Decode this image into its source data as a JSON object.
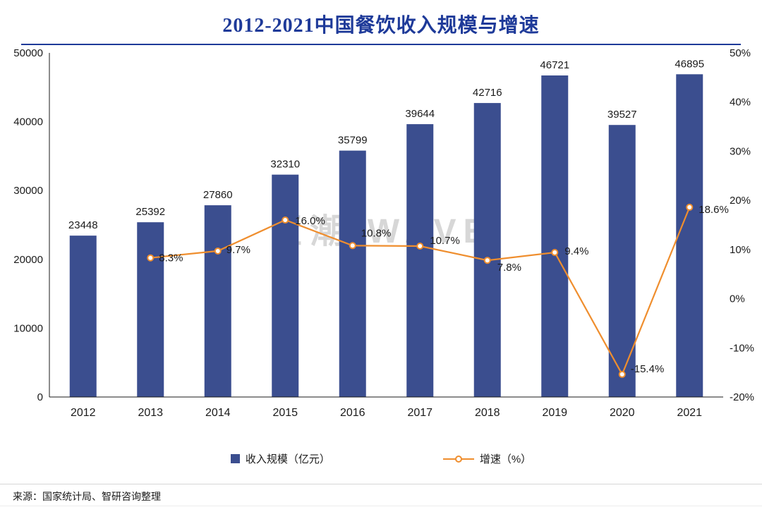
{
  "title": "2012-2021中国餐饮收入规模与增速",
  "watermark": "巨潮 WAVE",
  "source": "来源：国家统计局、智研咨询整理",
  "legend": {
    "bar_label": "收入规模（亿元）",
    "line_label": "增速（%）"
  },
  "colors": {
    "bar": "#3B4E8F",
    "line": "#EF8E2E",
    "title": "#1E3A99",
    "watermark": "#D7D7D7",
    "axis": "#1A1A1A"
  },
  "chart_data": {
    "type": "bar+line",
    "title": "2012-2021中国餐饮收入规模与增速",
    "categories": [
      "2012",
      "2013",
      "2014",
      "2015",
      "2016",
      "2017",
      "2018",
      "2019",
      "2020",
      "2021"
    ],
    "series": [
      {
        "name": "收入规模（亿元）",
        "type": "bar",
        "axis": "left",
        "values": [
          23448,
          25392,
          27860,
          32310,
          35799,
          39644,
          42716,
          46721,
          39527,
          46895
        ]
      },
      {
        "name": "增速（%）",
        "type": "line",
        "axis": "right",
        "values": [
          null,
          8.3,
          9.7,
          16.0,
          10.8,
          10.7,
          7.8,
          9.4,
          -15.4,
          18.6
        ]
      }
    ],
    "bar_labels": [
      "23448",
      "25392",
      "27860",
      "32310",
      "35799",
      "39644",
      "42716",
      "46721",
      "39527",
      "46895"
    ],
    "line_labels": [
      null,
      "8.3%",
      "9.7%",
      "16.0%",
      "10.8%",
      "10.7%",
      "7.8%",
      "9.4%",
      "-15.4%",
      "18.6%"
    ],
    "left_axis": {
      "min": 0,
      "max": 50000,
      "step": 10000,
      "ticks": [
        "0",
        "10000",
        "20000",
        "30000",
        "40000",
        "50000"
      ]
    },
    "right_axis": {
      "min": -20,
      "max": 50,
      "step": 10,
      "ticks": [
        "-20%",
        "-10%",
        "0%",
        "10%",
        "20%",
        "30%",
        "40%",
        "50%"
      ]
    },
    "grid": false,
    "legend_position": "bottom"
  }
}
